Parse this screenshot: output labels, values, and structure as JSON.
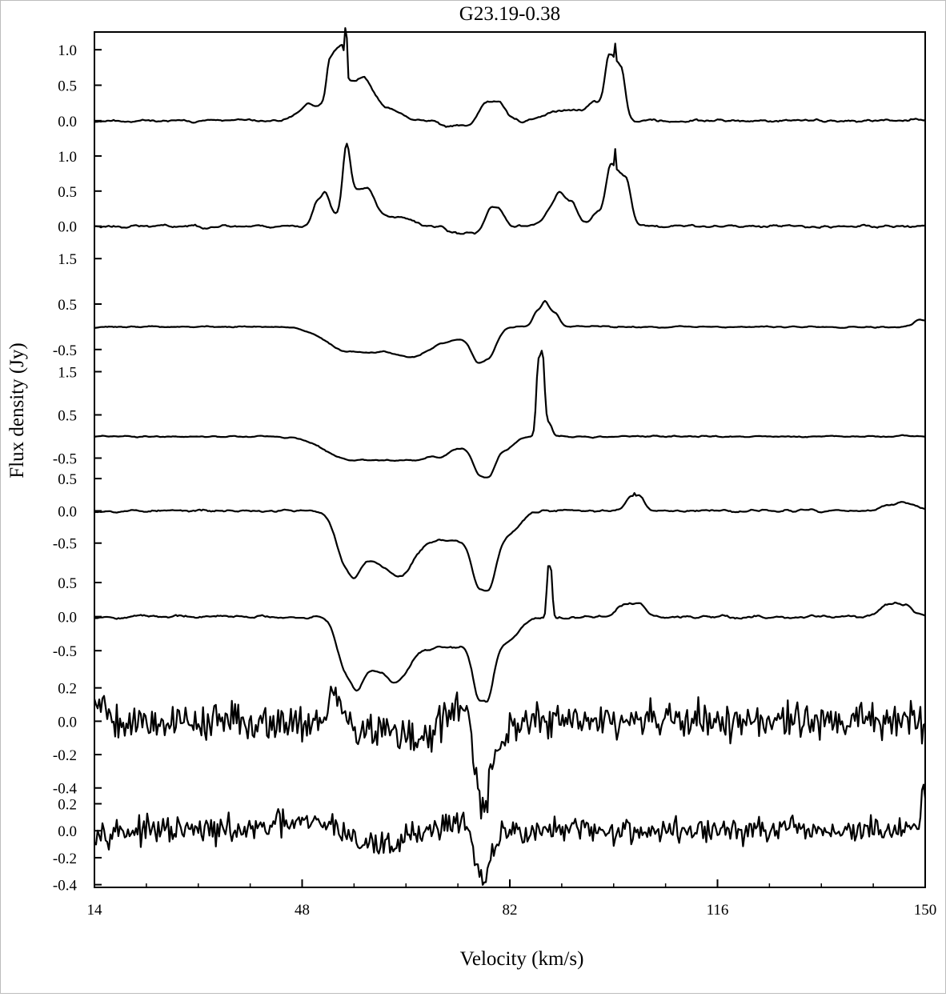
{
  "chart_data": {
    "type": "line",
    "title": "G23.19-0.38",
    "xlabel": "Velocity (km/s)",
    "ylabel": "Flux density (Jy)",
    "xlim": [
      14,
      150
    ],
    "x_ticks": [
      "14",
      "48",
      "82",
      "116",
      "150"
    ],
    "x_tick_values": [
      14,
      48,
      82,
      116,
      150
    ],
    "grid": false,
    "legend": "none",
    "panels": [
      {
        "ylim": [
          -0.25,
          1.25
        ],
        "y_ticks": [
          {
            "v": 1.0,
            "label": "1.0"
          },
          {
            "v": 0.5,
            "label": "0.5"
          },
          {
            "v": 0.0,
            "label": "0.0"
          }
        ],
        "baseline": 0.0,
        "noise": 0.025,
        "smooth": 3,
        "seed": 11,
        "features": [
          [
            49,
            52,
            0.22,
            1.5
          ],
          [
            52.5,
            54.5,
            0.55,
            0.5
          ],
          [
            55,
            58,
            0.45,
            1.6
          ],
          [
            58,
            62,
            0.15,
            2.0
          ],
          [
            72,
            76,
            -0.08,
            1.5
          ],
          [
            78,
            80,
            0.28,
            1.2
          ],
          [
            90,
            93,
            0.15,
            2.0
          ],
          [
            96,
            98.2,
            0.2,
            1.0
          ],
          [
            98.3,
            100.2,
            0.75,
            0.7
          ]
        ],
        "spikes": [
          [
            55.2,
            0.48
          ],
          [
            99.3,
            0.22
          ]
        ]
      },
      {
        "ylim": [
          -0.3,
          1.25
        ],
        "y_ticks": [
          {
            "v": 1.0,
            "label": "1.0"
          },
          {
            "v": 0.5,
            "label": "0.5"
          },
          {
            "v": 0.0,
            "label": "0.0"
          }
        ],
        "baseline": 0.0,
        "noise": 0.025,
        "smooth": 3,
        "seed": 23,
        "features": [
          [
            50.5,
            51.5,
            0.35,
            0.8
          ],
          [
            52.5,
            52.5,
            0.2,
            1.0
          ],
          [
            55.2,
            55.2,
            0.85,
            0.6
          ],
          [
            56.5,
            58.5,
            0.45,
            1.3
          ],
          [
            59,
            64,
            0.12,
            2.0
          ],
          [
            73,
            76,
            -0.1,
            1.2
          ],
          [
            79,
            80,
            0.28,
            0.9
          ],
          [
            88.5,
            89.5,
            0.2,
            1.0
          ],
          [
            90.5,
            92,
            0.35,
            1.0
          ],
          [
            96.5,
            98.5,
            0.2,
            1.0
          ],
          [
            98.6,
            101,
            0.7,
            0.8
          ]
        ],
        "spikes": [
          [
            99.3,
            0.25
          ]
        ]
      },
      {
        "ylim": [
          -0.75,
          1.75
        ],
        "y_ticks": [
          {
            "v": 1.5,
            "label": "1.5"
          },
          {
            "v": 0.5,
            "label": "0.5"
          },
          {
            "v": -0.5,
            "label": "-0.5"
          }
        ],
        "baseline": 0.0,
        "noise": 0.02,
        "smooth": 3,
        "seed": 37,
        "features": [
          [
            56,
            64,
            -0.55,
            4.0
          ],
          [
            68,
            76,
            -0.25,
            2.5
          ],
          [
            77,
            78.5,
            -0.55,
            1.2
          ],
          [
            86.5,
            87.5,
            0.32,
            0.7
          ],
          [
            88,
            89.5,
            0.3,
            0.7
          ],
          [
            149,
            149.8,
            0.15,
            0.8
          ]
        ],
        "spikes": []
      },
      {
        "ylim": [
          -0.75,
          1.75
        ],
        "y_ticks": [
          {
            "v": 1.5,
            "label": "1.5"
          },
          {
            "v": 0.5,
            "label": "0.5"
          },
          {
            "v": -0.5,
            "label": "-0.5"
          }
        ],
        "baseline": 0.0,
        "noise": 0.02,
        "smooth": 3,
        "seed": 41,
        "features": [
          [
            56,
            64,
            -0.55,
            4.0
          ],
          [
            68,
            70,
            -0.15,
            1.5
          ],
          [
            72,
            76,
            -0.25,
            2.0
          ],
          [
            77,
            78.5,
            -0.55,
            1.0
          ],
          [
            79,
            81,
            -0.3,
            1.6
          ],
          [
            86.7,
            87.3,
            1.75,
            0.35
          ],
          [
            87.6,
            88.4,
            0.3,
            0.5
          ]
        ],
        "spikes": []
      },
      {
        "ylim": [
          -0.9,
          0.65
        ],
        "y_ticks": [
          {
            "v": 0.5,
            "label": "0.5"
          },
          {
            "v": 0.0,
            "label": "0.0"
          },
          {
            "v": -0.5,
            "label": "-0.5"
          }
        ],
        "baseline": 0.0,
        "noise": 0.022,
        "smooth": 3,
        "seed": 53,
        "features": [
          [
            55,
            56,
            -0.35,
            1.3
          ],
          [
            57,
            63,
            -0.72,
            2.5
          ],
          [
            66,
            76,
            -0.45,
            3.0
          ],
          [
            77,
            78.5,
            -0.62,
            1.2
          ],
          [
            79,
            82,
            -0.3,
            1.8
          ],
          [
            102,
            103,
            0.25,
            1.0
          ],
          [
            145,
            147,
            0.12,
            1.5
          ]
        ],
        "spikes": [
          [
            102.5,
            0.05
          ]
        ]
      },
      {
        "ylim": [
          -0.85,
          0.7
        ],
        "y_ticks": [
          {
            "v": 0.5,
            "label": "0.5"
          },
          {
            "v": 0.0,
            "label": "0.0"
          },
          {
            "v": -0.5,
            "label": "-0.5"
          }
        ],
        "baseline": 0.0,
        "noise": 0.025,
        "smooth": 3,
        "seed": 67,
        "features": [
          [
            55,
            56.5,
            -0.4,
            1.3
          ],
          [
            57.5,
            62.5,
            -0.72,
            2.3
          ],
          [
            66,
            76,
            -0.45,
            3.0
          ],
          [
            77,
            78.2,
            -0.65,
            1.0
          ],
          [
            79,
            82,
            -0.3,
            1.8
          ],
          [
            88.3,
            88.7,
            0.75,
            0.25
          ],
          [
            101,
            103,
            0.2,
            1.2
          ],
          [
            144,
            146.5,
            0.18,
            1.4
          ]
        ],
        "spikes": []
      },
      {
        "ylim": [
          -0.43,
          0.28
        ],
        "y_ticks": [
          {
            "v": 0.2,
            "label": "0.2"
          },
          {
            "v": 0.0,
            "label": "0.0"
          },
          {
            "v": -0.2,
            "label": "-0.2"
          },
          {
            "v": -0.4,
            "label": "-0.4"
          }
        ],
        "baseline": 0.0,
        "noise": 0.055,
        "smooth": 1,
        "seed": 79,
        "features": [
          [
            14,
            15.5,
            0.12,
            0.8
          ],
          [
            53,
            54,
            0.14,
            0.6
          ],
          [
            58,
            62,
            -0.05,
            2.0
          ],
          [
            66,
            70,
            -0.1,
            2.0
          ],
          [
            71.5,
            73.5,
            0.12,
            1.0
          ],
          [
            76.8,
            77.8,
            -0.38,
            0.7
          ],
          [
            78,
            80,
            -0.2,
            0.8
          ]
        ],
        "spikes": []
      },
      {
        "ylim": [
          -0.42,
          0.28
        ],
        "y_ticks": [
          {
            "v": 0.2,
            "label": "0.2"
          },
          {
            "v": 0.0,
            "label": "0.0"
          },
          {
            "v": -0.2,
            "label": "-0.2"
          },
          {
            "v": -0.4,
            "label": "-0.4"
          }
        ],
        "baseline": 0.0,
        "noise": 0.048,
        "smooth": 1,
        "seed": 97,
        "features": [
          [
            44,
            52,
            0.05,
            1.5
          ],
          [
            58,
            63,
            -0.1,
            1.5
          ],
          [
            72,
            75,
            0.07,
            1.0
          ],
          [
            76.8,
            77.8,
            -0.3,
            0.7
          ],
          [
            78,
            79.5,
            -0.12,
            0.8
          ],
          [
            149.6,
            149.9,
            0.32,
            0.2
          ]
        ],
        "spikes": []
      }
    ]
  }
}
